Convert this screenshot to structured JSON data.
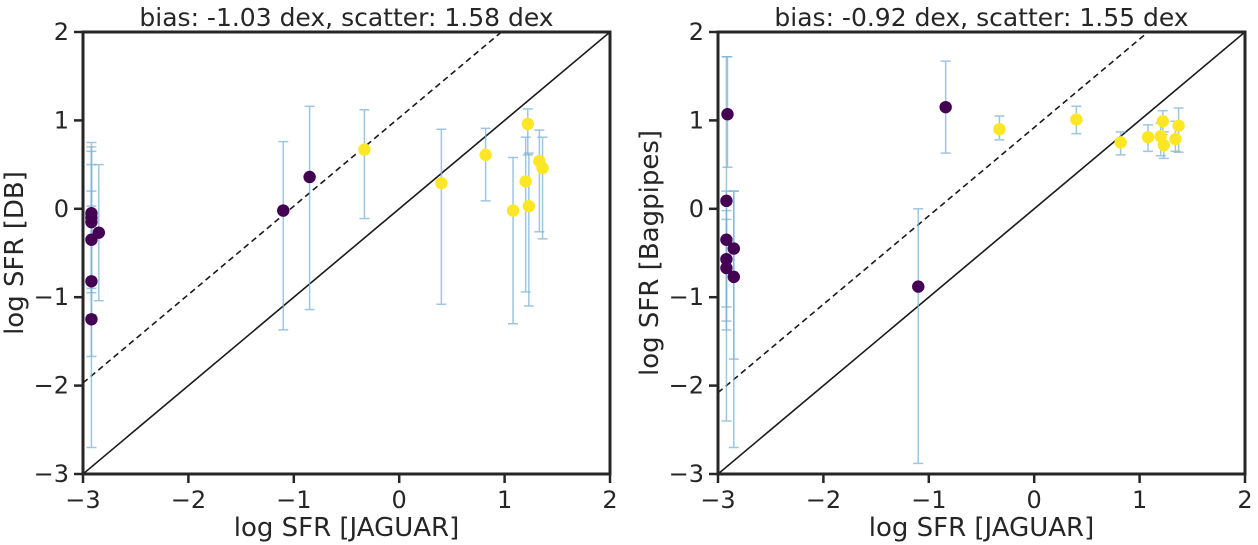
{
  "chart_data": [
    {
      "type": "scatter",
      "title": "bias: -1.03 dex, scatter: 1.58 dex",
      "xlabel": "log SFR [JAGUAR]",
      "ylabel": "log SFR [DB]",
      "xlim": [
        -3,
        2
      ],
      "ylim": [
        -3,
        2
      ],
      "xticks": [
        -3,
        -2,
        -1,
        0,
        1,
        2
      ],
      "yticks": [
        -3,
        -2,
        -1,
        0,
        1,
        2
      ],
      "xtick_labels": [
        "−3",
        "−2",
        "−1",
        "0",
        "1",
        "2"
      ],
      "ytick_labels": [
        "−3",
        "−2",
        "−1",
        "0",
        "1",
        "2"
      ],
      "grid": false,
      "reference_lines": [
        {
          "style": "solid",
          "slope": 1,
          "offset": 0
        },
        {
          "style": "dashed",
          "slope": 1,
          "offset": 1.03
        }
      ],
      "points": [
        {
          "x": -2.92,
          "y": -0.05,
          "err_lo": 0.8,
          "err_hi": 0.8,
          "color": "#440154"
        },
        {
          "x": -2.92,
          "y": -0.1,
          "err_lo": 0.8,
          "err_hi": 0.8,
          "color": "#440154"
        },
        {
          "x": -2.92,
          "y": -0.15,
          "err_lo": 0.8,
          "err_hi": 0.8,
          "color": "#440154"
        },
        {
          "x": -2.92,
          "y": -0.35,
          "err_lo": 0.85,
          "err_hi": 0.85,
          "color": "#440154"
        },
        {
          "x": -2.92,
          "y": -0.82,
          "err_lo": 0.85,
          "err_hi": 0.85,
          "color": "#440154"
        },
        {
          "x": -2.92,
          "y": -1.25,
          "err_lo": 1.45,
          "err_hi": 1.45,
          "color": "#440154"
        },
        {
          "x": -2.85,
          "y": -0.27,
          "err_lo": 0.77,
          "err_hi": 0.77,
          "color": "#440154"
        },
        {
          "x": -1.1,
          "y": -0.02,
          "err_lo": 1.35,
          "err_hi": 0.78,
          "color": "#440154"
        },
        {
          "x": -0.85,
          "y": 0.36,
          "err_lo": 1.5,
          "err_hi": 0.8,
          "color": "#440154"
        },
        {
          "x": -0.33,
          "y": 0.67,
          "err_lo": 0.78,
          "err_hi": 0.45,
          "color": "#fde725"
        },
        {
          "x": 0.4,
          "y": 0.29,
          "err_lo": 1.37,
          "err_hi": 0.61,
          "color": "#fde725"
        },
        {
          "x": 0.82,
          "y": 0.61,
          "err_lo": 0.52,
          "err_hi": 0.3,
          "color": "#fde725"
        },
        {
          "x": 1.08,
          "y": -0.02,
          "err_lo": 1.28,
          "err_hi": 0.6,
          "color": "#fde725"
        },
        {
          "x": 1.2,
          "y": 0.31,
          "err_lo": 1.25,
          "err_hi": 0.5,
          "color": "#fde725"
        },
        {
          "x": 1.22,
          "y": 0.96,
          "err_lo": 0.35,
          "err_hi": 0.17,
          "color": "#fde725"
        },
        {
          "x": 1.23,
          "y": 0.03,
          "err_lo": 1.13,
          "err_hi": 0.6,
          "color": "#fde725"
        },
        {
          "x": 1.33,
          "y": 0.54,
          "err_lo": 0.8,
          "err_hi": 0.35,
          "color": "#fde725"
        },
        {
          "x": 1.36,
          "y": 0.46,
          "err_lo": 0.8,
          "err_hi": 0.35,
          "color": "#fde725"
        }
      ]
    },
    {
      "type": "scatter",
      "title": "bias: -0.92 dex, scatter: 1.55 dex",
      "xlabel": "log SFR [JAGUAR]",
      "ylabel": "log SFR [Bagpipes]",
      "xlim": [
        -3,
        2
      ],
      "ylim": [
        -3,
        2
      ],
      "xticks": [
        -3,
        -2,
        -1,
        0,
        1,
        2
      ],
      "yticks": [
        -3,
        -2,
        -1,
        0,
        1,
        2
      ],
      "xtick_labels": [
        "−3",
        "−2",
        "−1",
        "0",
        "1",
        "2"
      ],
      "ytick_labels": [
        "−3",
        "−2",
        "−1",
        "0",
        "1",
        "2"
      ],
      "grid": false,
      "reference_lines": [
        {
          "style": "solid",
          "slope": 1,
          "offset": 0
        },
        {
          "style": "dashed",
          "slope": 1,
          "offset": 0.92
        }
      ],
      "points": [
        {
          "x": -2.91,
          "y": 1.07,
          "err_lo": 0.6,
          "err_hi": 0.65,
          "color": "#440154"
        },
        {
          "x": -2.92,
          "y": 0.09,
          "err_lo": 1.2,
          "err_hi": 1.63,
          "color": "#440154"
        },
        {
          "x": -2.92,
          "y": -0.35,
          "err_lo": 2.05,
          "err_hi": 0.55,
          "color": "#440154"
        },
        {
          "x": -2.92,
          "y": -0.57,
          "err_lo": 0.7,
          "err_hi": 0.55,
          "color": "#440154"
        },
        {
          "x": -2.92,
          "y": -0.67,
          "err_lo": 0.7,
          "err_hi": 0.55,
          "color": "#440154"
        },
        {
          "x": -2.85,
          "y": -0.45,
          "err_lo": 1.25,
          "err_hi": 0.65,
          "color": "#440154"
        },
        {
          "x": -2.85,
          "y": -0.77,
          "err_lo": 1.93,
          "err_hi": 0.97,
          "color": "#440154"
        },
        {
          "x": -1.1,
          "y": -0.88,
          "err_lo": 2.0,
          "err_hi": 0.88,
          "color": "#440154"
        },
        {
          "x": -0.84,
          "y": 1.15,
          "err_lo": 0.52,
          "err_hi": 0.52,
          "color": "#440154"
        },
        {
          "x": -0.33,
          "y": 0.9,
          "err_lo": 0.12,
          "err_hi": 0.15,
          "color": "#fde725"
        },
        {
          "x": 0.4,
          "y": 1.01,
          "err_lo": 0.16,
          "err_hi": 0.15,
          "color": "#fde725"
        },
        {
          "x": 0.82,
          "y": 0.75,
          "err_lo": 0.14,
          "err_hi": 0.12,
          "color": "#fde725"
        },
        {
          "x": 1.08,
          "y": 0.81,
          "err_lo": 0.16,
          "err_hi": 0.14,
          "color": "#fde725"
        },
        {
          "x": 1.2,
          "y": 0.82,
          "err_lo": 0.22,
          "err_hi": 0.15,
          "color": "#fde725"
        },
        {
          "x": 1.22,
          "y": 0.99,
          "err_lo": 0.15,
          "err_hi": 0.12,
          "color": "#fde725"
        },
        {
          "x": 1.23,
          "y": 0.72,
          "err_lo": 0.15,
          "err_hi": 0.15,
          "color": "#fde725"
        },
        {
          "x": 1.34,
          "y": 0.79,
          "err_lo": 0.14,
          "err_hi": 0.2,
          "color": "#fde725"
        },
        {
          "x": 1.37,
          "y": 0.94,
          "err_lo": 0.3,
          "err_hi": 0.2,
          "color": "#fde725"
        }
      ]
    }
  ],
  "colors": {
    "errorbar": "#7fb3d5",
    "low_value_point": "#440154",
    "high_value_point": "#fde725",
    "axes": "#262626"
  }
}
